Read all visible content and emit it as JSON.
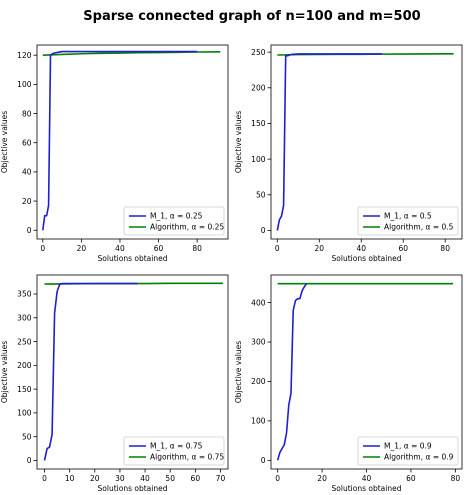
{
  "figure": {
    "title": "Sparse connected graph of n=100 and m=500"
  },
  "chart_data": [
    {
      "type": "line",
      "xlabel": "Solutions obtained",
      "ylabel": "Objective values",
      "xlim": [
        -3,
        96
      ],
      "ylim": [
        -6,
        127
      ],
      "xticks": [
        0,
        20,
        40,
        60,
        80
      ],
      "yticks": [
        0,
        20,
        40,
        60,
        80,
        100,
        120
      ],
      "legend_position": "lower-right",
      "series": [
        {
          "name": "M_1, α = 0.25",
          "color": "#1f1fcf",
          "x": [
            0,
            1,
            2,
            3,
            4,
            5,
            6,
            8,
            10,
            15,
            20,
            30,
            40,
            50,
            60,
            70,
            80
          ],
          "y": [
            0,
            10,
            10,
            17,
            120,
            121,
            121.5,
            122,
            122.5,
            122.5,
            122.5,
            122.5,
            122.5,
            122.5,
            122.5,
            122.5,
            122.5
          ]
        },
        {
          "name": "Algorithm, α = 0.25",
          "color": "#008000",
          "x": [
            0,
            10,
            20,
            30,
            40,
            50,
            60,
            70,
            80,
            92
          ],
          "y": [
            120,
            120.5,
            121,
            121.3,
            121.5,
            121.7,
            121.8,
            122,
            122.2,
            122.3
          ]
        }
      ]
    },
    {
      "type": "line",
      "xlabel": "Solutions obtained",
      "ylabel": "Objective values",
      "xlim": [
        -3,
        88
      ],
      "ylim": [
        -12,
        260
      ],
      "xticks": [
        0,
        20,
        40,
        60,
        80
      ],
      "yticks": [
        0,
        50,
        100,
        150,
        200,
        250
      ],
      "legend_position": "lower-right",
      "series": [
        {
          "name": "M_1, α = 0.5",
          "color": "#1f1fcf",
          "x": [
            0,
            1,
            2,
            3,
            4,
            5,
            6,
            7,
            8,
            10,
            15,
            20,
            30,
            40,
            50
          ],
          "y": [
            0,
            15,
            20,
            35,
            245,
            245,
            246,
            247,
            247,
            247.5,
            247.5,
            247.5,
            247.5,
            247.5,
            247.5
          ]
        },
        {
          "name": "Algorithm, α = 0.5",
          "color": "#008000",
          "x": [
            0,
            10,
            20,
            30,
            40,
            50,
            60,
            70,
            80,
            84
          ],
          "y": [
            246,
            246.5,
            246.8,
            247,
            247,
            247.2,
            247.3,
            247.5,
            247.6,
            247.7
          ]
        }
      ]
    },
    {
      "type": "line",
      "xlabel": "Solutions obtained",
      "ylabel": "Objective values",
      "xlim": [
        -3,
        73
      ],
      "ylim": [
        -18,
        390
      ],
      "xticks": [
        0,
        10,
        20,
        30,
        40,
        50,
        60,
        70
      ],
      "yticks": [
        0,
        50,
        100,
        150,
        200,
        250,
        300,
        350
      ],
      "legend_position": "lower-right",
      "series": [
        {
          "name": "M_1, α = 0.75",
          "color": "#1f1fcf",
          "x": [
            0,
            1,
            2,
            3,
            4,
            5,
            6,
            7,
            8,
            10,
            15,
            20,
            30,
            37
          ],
          "y": [
            0,
            25,
            28,
            55,
            310,
            355,
            370,
            372,
            372,
            372,
            372,
            372,
            372,
            372
          ]
        },
        {
          "name": "Algorithm, α = 0.75",
          "color": "#008000",
          "x": [
            0,
            10,
            20,
            30,
            40,
            50,
            60,
            71
          ],
          "y": [
            371,
            371.5,
            372,
            372,
            372,
            372.5,
            372.5,
            372.5
          ]
        }
      ]
    },
    {
      "type": "line",
      "xlabel": "Solutions obtained",
      "ylabel": "Objective values",
      "xlim": [
        -3,
        83
      ],
      "ylim": [
        -22,
        470
      ],
      "xticks": [
        0,
        20,
        40,
        60,
        80
      ],
      "yticks": [
        0,
        100,
        200,
        300,
        400
      ],
      "legend_position": "lower-right",
      "series": [
        {
          "name": "M_1, α = 0.9",
          "color": "#1f1fcf",
          "x": [
            0,
            1,
            2,
            3,
            4,
            5,
            6,
            7,
            8,
            9,
            10,
            11,
            12,
            13
          ],
          "y": [
            0,
            20,
            30,
            40,
            70,
            140,
            170,
            380,
            405,
            410,
            410,
            430,
            440,
            448
          ]
        },
        {
          "name": "Algorithm, α = 0.9",
          "color": "#008000",
          "x": [
            0,
            10,
            20,
            30,
            40,
            50,
            60,
            70,
            79
          ],
          "y": [
            448,
            448,
            448,
            448,
            448,
            448,
            448,
            448,
            448
          ]
        }
      ]
    }
  ]
}
